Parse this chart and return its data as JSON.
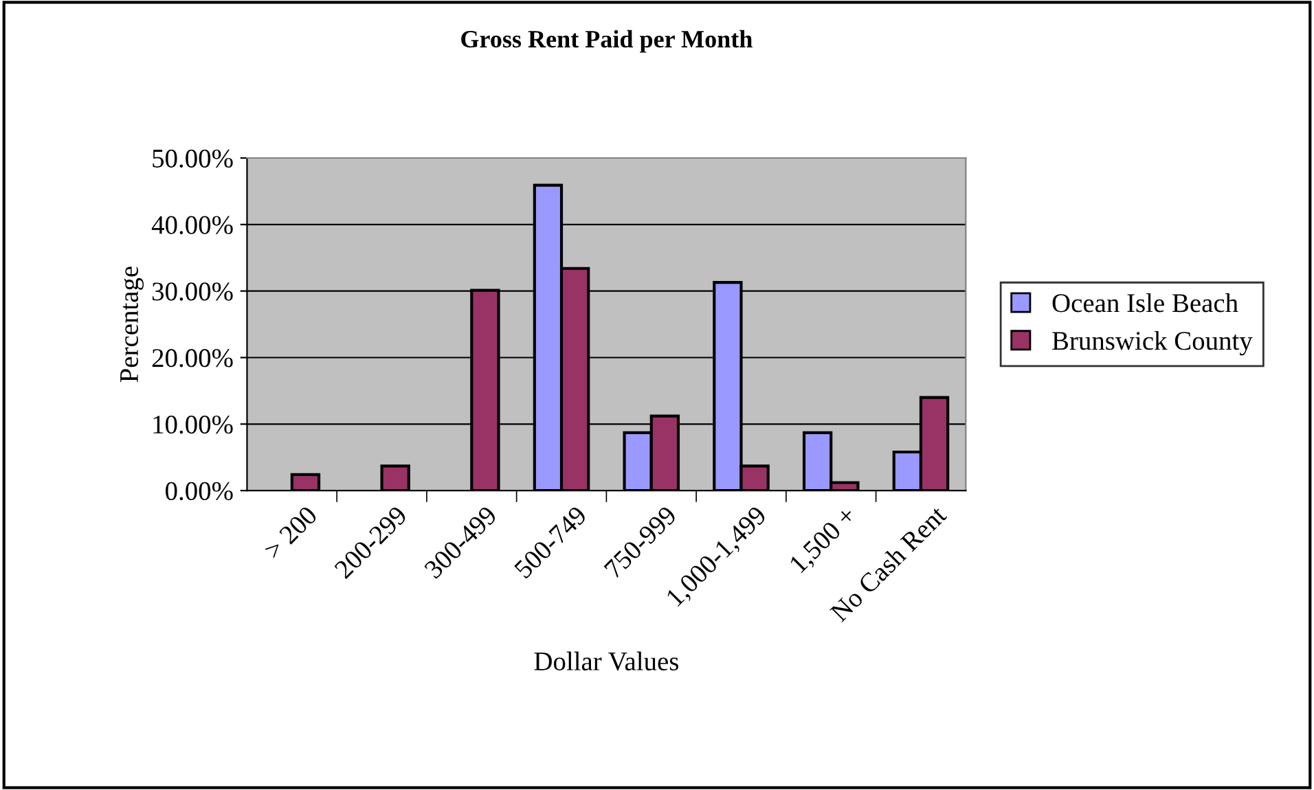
{
  "chart_data": {
    "type": "bar",
    "title": "Gross Rent Paid per Month",
    "xlabel": "Dollar Values",
    "ylabel": "Percentage",
    "categories": [
      "> 200",
      "200-299",
      "300-499",
      "500-749",
      "750-999",
      "1,000-1,499",
      "1,500 +",
      "No Cash Rent"
    ],
    "series": [
      {
        "name": "Ocean Isle Beach",
        "color": "#9999ff",
        "values": [
          null,
          null,
          null,
          45.9,
          8.7,
          31.3,
          8.7,
          5.8
        ]
      },
      {
        "name": "Brunswick County",
        "color": "#993366",
        "values": [
          2.4,
          3.7,
          30.1,
          33.4,
          11.2,
          3.7,
          1.2,
          14.0
        ]
      }
    ],
    "ylim": [
      0,
      50
    ],
    "yticks": [
      {
        "value": 0,
        "label": "0.00%"
      },
      {
        "value": 10,
        "label": "10.00%"
      },
      {
        "value": 20,
        "label": "20.00%"
      },
      {
        "value": 30,
        "label": "30.00%"
      },
      {
        "value": 40,
        "label": "40.00%"
      },
      {
        "value": 50,
        "label": "50.00%"
      }
    ],
    "grid": "y",
    "legend": "right"
  }
}
